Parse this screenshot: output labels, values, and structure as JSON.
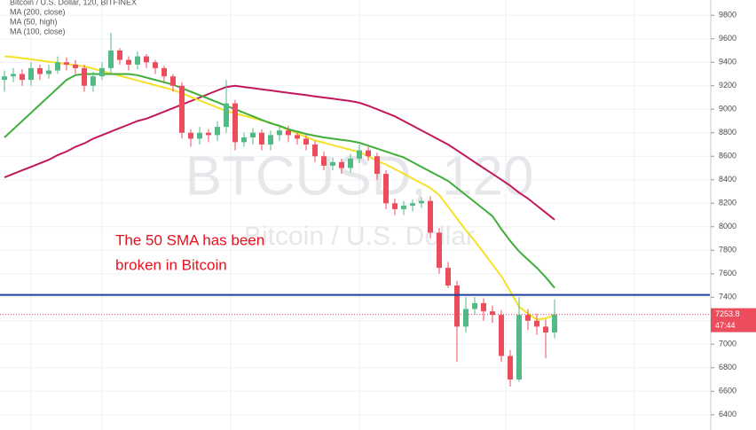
{
  "chart_data": {
    "type": "candlestick",
    "title": "Bitcoin / U.S. Dollar, 120, BITFINEX",
    "watermark": [
      "BTCUSD, 120",
      "Bitcoin / U.S. Dollar"
    ],
    "annotation": [
      "The 50 SMA has been",
      "broken in Bitcoin"
    ],
    "annotation_color": "#e8101e",
    "up_color": "#53b987",
    "down_color": "#eb4d5c",
    "categories": [
      null,
      null,
      null,
      null,
      null,
      null,
      null,
      null,
      null,
      null,
      null,
      null,
      null,
      null,
      null,
      null,
      null,
      null,
      null,
      null,
      null,
      null,
      null,
      null,
      null,
      null,
      null,
      null,
      null,
      null,
      null,
      null,
      null,
      null,
      null,
      null,
      null,
      null,
      null,
      null,
      null,
      null,
      null,
      null,
      null,
      null,
      null,
      null,
      null,
      null,
      null,
      null,
      null,
      null,
      null,
      null,
      null,
      null,
      null,
      null,
      null,
      null,
      null
    ],
    "open": [
      9250,
      9280,
      9300,
      9250,
      9350,
      9300,
      9330,
      9400,
      9380,
      9350,
      9200,
      9280,
      9350,
      9500,
      9420,
      9380,
      9450,
      9400,
      9350,
      9280,
      9200,
      8800,
      8750,
      8800,
      8780,
      8850,
      9050,
      8720,
      8760,
      8800,
      8700,
      8780,
      8820,
      8780,
      8750,
      8700,
      8600,
      8520,
      8550,
      8500,
      8580,
      8650,
      8600,
      8450,
      8200,
      8150,
      8180,
      8200,
      8220,
      7950,
      7650,
      7500,
      7150,
      7300,
      7350,
      7280,
      7250,
      6900,
      6700,
      7250,
      7200,
      7150,
      7100
    ],
    "high": [
      9330,
      9350,
      9340,
      9400,
      9380,
      9380,
      9450,
      9440,
      9420,
      9380,
      9320,
      9400,
      9650,
      9520,
      9450,
      9490,
      9470,
      9420,
      9370,
      9300,
      9230,
      8830,
      8850,
      8830,
      8900,
      9250,
      9080,
      8800,
      8840,
      8830,
      8820,
      8860,
      8860,
      8800,
      8780,
      8730,
      8640,
      8590,
      8580,
      8620,
      8700,
      8680,
      8630,
      8480,
      8240,
      8220,
      8230,
      8250,
      8260,
      7990,
      7700,
      7540,
      7400,
      7400,
      7390,
      7330,
      7290,
      6950,
      7400,
      7300,
      7260,
      7210,
      7380
    ],
    "low": [
      9150,
      9230,
      9200,
      9200,
      9250,
      9260,
      9300,
      9330,
      9300,
      9150,
      9150,
      9250,
      9300,
      9380,
      9330,
      9340,
      9350,
      9300,
      9230,
      9150,
      8750,
      8680,
      8700,
      8720,
      8730,
      8800,
      8650,
      8680,
      8700,
      8650,
      8650,
      8730,
      8720,
      8700,
      8650,
      8550,
      8480,
      8480,
      8450,
      8460,
      8540,
      8560,
      8400,
      8150,
      8100,
      8100,
      8130,
      8160,
      7900,
      7600,
      7480,
      6850,
      7100,
      7250,
      7200,
      7180,
      6850,
      6640,
      6680,
      7120,
      7080,
      6880,
      7050
    ],
    "close": [
      9280,
      9300,
      9250,
      9350,
      9300,
      9330,
      9400,
      9380,
      9350,
      9200,
      9280,
      9350,
      9500,
      9420,
      9380,
      9450,
      9400,
      9350,
      9280,
      9200,
      8800,
      8750,
      8800,
      8780,
      8850,
      9050,
      8720,
      8760,
      8800,
      8700,
      8780,
      8820,
      8780,
      8750,
      8700,
      8600,
      8520,
      8550,
      8500,
      8580,
      8650,
      8600,
      8450,
      8200,
      8150,
      8180,
      8200,
      8220,
      7950,
      7650,
      7500,
      7150,
      7300,
      7350,
      7280,
      7250,
      6900,
      6700,
      7250,
      7200,
      7150,
      7100,
      7253.8
    ],
    "series": [
      {
        "name": "MA (200, close)",
        "color": "#c2185b",
        "values": [
          8420,
          8450,
          8480,
          8510,
          8540,
          8570,
          8610,
          8640,
          8680,
          8710,
          8750,
          8780,
          8810,
          8840,
          8870,
          8900,
          8920,
          8950,
          8980,
          9010,
          9040,
          9070,
          9100,
          9130,
          9160,
          9190,
          9200,
          9190,
          9180,
          9170,
          9160,
          9150,
          9140,
          9130,
          9120,
          9110,
          9100,
          9090,
          9080,
          9070,
          9055,
          9030,
          9000,
          8970,
          8940,
          8900,
          8860,
          8820,
          8780,
          8740,
          8700,
          8650,
          8600,
          8550,
          8500,
          8450,
          8400,
          8350,
          8290,
          8240,
          8180,
          8120,
          8060
        ]
      },
      {
        "name": "MA (50, high)",
        "color": "#f5e12a",
        "values": [
          9450,
          9445,
          9435,
          9425,
          9415,
          9405,
          9395,
          9385,
          9375,
          9365,
          9345,
          9325,
          9305,
          9285,
          9265,
          9245,
          9225,
          9205,
          9185,
          9165,
          9135,
          9105,
          9075,
          9045,
          9015,
          8985,
          8965,
          8945,
          8925,
          8905,
          8885,
          8855,
          8825,
          8795,
          8765,
          8735,
          8715,
          8695,
          8675,
          8655,
          8635,
          8600,
          8560,
          8530,
          8490,
          8450,
          8410,
          8370,
          8330,
          8270,
          8170,
          8070,
          7970,
          7880,
          7780,
          7680,
          7580,
          7450,
          7320,
          7260,
          7210,
          7220,
          7250
        ]
      },
      {
        "name": "MA (100, close)",
        "color": "#3fae3a",
        "values": [
          8760,
          8830,
          8900,
          8970,
          9040,
          9110,
          9180,
          9250,
          9290,
          9300,
          9300,
          9300,
          9300,
          9300,
          9300,
          9290,
          9270,
          9250,
          9230,
          9210,
          9180,
          9150,
          9120,
          9090,
          9060,
          9030,
          9000,
          8970,
          8940,
          8910,
          8880,
          8860,
          8830,
          8810,
          8790,
          8775,
          8760,
          8750,
          8740,
          8730,
          8715,
          8690,
          8665,
          8640,
          8615,
          8590,
          8550,
          8510,
          8470,
          8430,
          8390,
          8330,
          8270,
          8210,
          8150,
          8090,
          7980,
          7880,
          7790,
          7720,
          7650,
          7570,
          7480
        ]
      }
    ],
    "hline": {
      "value": 7420,
      "color": "#1a3f9c"
    },
    "last_price": 7253.8,
    "countdown": "47:44",
    "ylim": [
      6270,
      9930
    ],
    "yticks": [
      6400,
      6600,
      6800,
      7000,
      7200,
      7400,
      7600,
      7800,
      8000,
      8200,
      8400,
      8600,
      8800,
      9000,
      9200,
      9400,
      9600,
      9800
    ],
    "grid": true
  }
}
